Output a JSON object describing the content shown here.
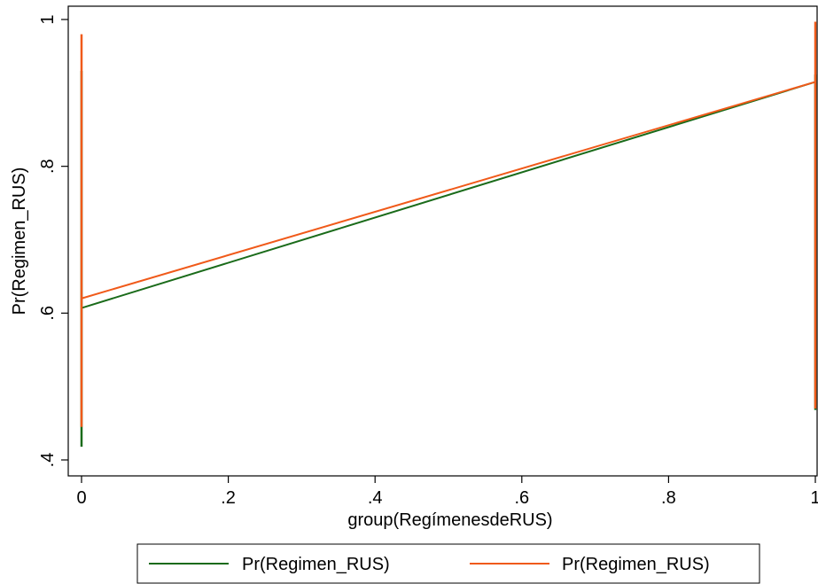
{
  "chart_data": {
    "type": "line",
    "xlabel": "group(RegímenesdeRUS)",
    "ylabel": "Pr(Regimen_RUS)",
    "xlim": [
      0,
      1
    ],
    "ylim": [
      0.4,
      1
    ],
    "xticks": [
      0,
      0.2,
      0.4,
      0.6,
      0.8,
      1
    ],
    "xtick_labels": [
      "0",
      ".2",
      ".4",
      ".6",
      ".8",
      "1"
    ],
    "yticks": [
      0.4,
      0.6,
      0.8,
      1
    ],
    "ytick_labels": [
      ".4",
      ".6",
      ".8",
      "1"
    ],
    "grid": false,
    "legend_position": "bottom",
    "series": [
      {
        "name": "Pr(Regimen_RUS)",
        "color": "#1a6b1a",
        "fit_line": [
          [
            0,
            0.607
          ],
          [
            1,
            0.915
          ]
        ],
        "x0_range": [
          0.418,
          0.93
        ],
        "x1_range": [
          0.468,
          0.925
        ]
      },
      {
        "name": "Pr(Regimen_RUS)",
        "color": "#f05a1a",
        "fit_line": [
          [
            0,
            0.62
          ],
          [
            1,
            0.915
          ]
        ],
        "x0_range": [
          0.445,
          0.98
        ],
        "x1_range": [
          0.47,
          0.997
        ]
      }
    ]
  }
}
